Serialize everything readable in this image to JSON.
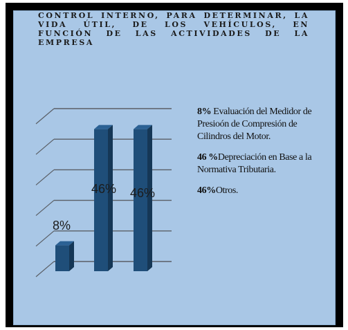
{
  "title": "CONTROL INTERNO, PARA DETERMINAR, LA VIDA ÚTIL, DE LOS VEHÍCULOS, EN FUNCIÓN DE LAS ACTIVIDADES DE LA EMPRESA",
  "legend": [
    {
      "pct": "8%",
      "text": " Evaluación del Medidor de Presioón de Compresión de Cilindros del Motor."
    },
    {
      "pct": "46 %",
      "text": "Depreciación en Base a la Normativa Tributaria."
    },
    {
      "pct": "46%",
      "text": "Otros."
    }
  ],
  "colors": {
    "bar_front": "#1f4e79",
    "bar_side": "#153756",
    "bar_top": "#2b6194",
    "background": "#a9c7e6"
  },
  "chart_data": {
    "type": "bar",
    "categories": [
      "",
      "",
      ""
    ],
    "values": [
      8,
      46,
      46
    ],
    "data_labels": [
      "8%",
      "46%",
      "46%"
    ],
    "ylim": [
      0,
      50
    ],
    "grid": true,
    "three_d": true
  }
}
